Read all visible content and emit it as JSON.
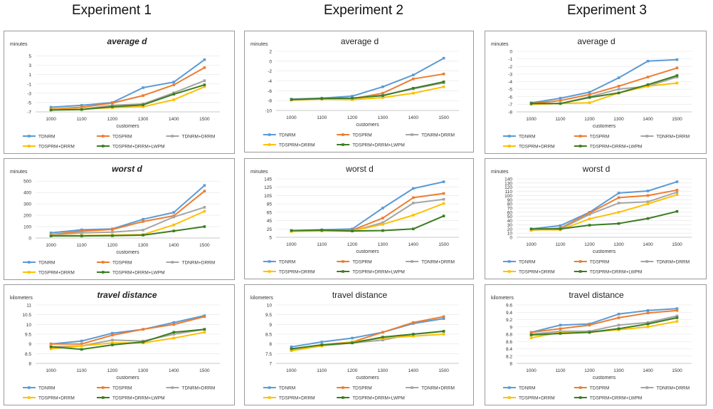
{
  "experiments": [
    "Experiment 1",
    "Experiment 2",
    "Experiment 3"
  ],
  "colors": {
    "TDNRM": "#5b9bd5",
    "TDSPRM": "#ed7d31",
    "TDNRM+DRRM": "#a5a5a5",
    "TDSPRM+DRRM": "#ffc000",
    "TDSPRM+DRRM+LWPM": "#3a7d22"
  },
  "chart_data": [
    {
      "type": "line",
      "title": "average d",
      "ylabel": "minutes",
      "xlabel": "customers",
      "categories": [
        "1000",
        "1100",
        "1200",
        "1300",
        "1400",
        "1500"
      ],
      "yticks": [
        "-7",
        "-5",
        "-3",
        "-1",
        "1",
        "3",
        "5"
      ],
      "ylim": [
        -7,
        6
      ],
      "legend": [
        "TDNRM",
        "TDSPRM",
        "TDNRM+DRRM",
        "TDSPRM+DRRM",
        "TDSPRM+DRRM+LWPM"
      ],
      "series": [
        {
          "name": "TDNRM",
          "values": [
            -6.0,
            -5.6,
            -5.0,
            -1.8,
            -0.6,
            4.2
          ]
        },
        {
          "name": "TDSPRM",
          "values": [
            -6.4,
            -6.0,
            -5.1,
            -3.5,
            -1.2,
            2.5
          ]
        },
        {
          "name": "TDNRM+DRRM",
          "values": [
            -6.5,
            -6.4,
            -5.6,
            -5.3,
            -2.9,
            -0.3
          ]
        },
        {
          "name": "TDSPRM+DRRM",
          "values": [
            -6.5,
            -6.4,
            -6.1,
            -5.9,
            -4.4,
            -1.6
          ]
        },
        {
          "name": "TDSPRM+DRRM+LWPM",
          "values": [
            -6.6,
            -6.5,
            -5.9,
            -5.5,
            -3.2,
            -1.2
          ]
        }
      ]
    },
    {
      "type": "line",
      "title": "average d",
      "ylabel": "minutes",
      "xlabel": "customers",
      "categories": [
        "1000",
        "1100",
        "1200",
        "1300",
        "1400",
        "1500"
      ],
      "yticks": [
        "-10",
        "-8",
        "-6",
        "-4",
        "-2",
        "0",
        "2"
      ],
      "ylim": [
        -10,
        2
      ],
      "legend": [
        "TDNRM",
        "TDSPRM",
        "TDNRM+DRRM",
        "TDSPRM+DRRM",
        "TDSPRM+DRRM+LWPM"
      ],
      "series": [
        {
          "name": "TDNRM",
          "values": [
            -7.7,
            -7.5,
            -7.1,
            -5.2,
            -2.8,
            0.6
          ]
        },
        {
          "name": "TDSPRM",
          "values": [
            -7.8,
            -7.6,
            -7.6,
            -6.5,
            -3.6,
            -2.6
          ]
        },
        {
          "name": "TDNRM+DRRM",
          "values": [
            -7.8,
            -7.6,
            -7.5,
            -6.9,
            -5.6,
            -4.4
          ]
        },
        {
          "name": "TDSPRM+DRRM",
          "values": [
            -7.9,
            -7.7,
            -7.8,
            -7.4,
            -6.5,
            -5.2
          ]
        },
        {
          "name": "TDSPRM+DRRM+LWPM",
          "values": [
            -7.8,
            -7.6,
            -7.5,
            -7.0,
            -5.5,
            -4.2
          ]
        }
      ]
    },
    {
      "type": "line",
      "title": "average d",
      "ylabel": "minutes",
      "xlabel": "customers",
      "categories": [
        "1000",
        "1100",
        "1200",
        "1300",
        "1400",
        "1500"
      ],
      "yticks": [
        "-8",
        "-7",
        "-6",
        "-5",
        "-4",
        "-3",
        "-2",
        "-1",
        "0"
      ],
      "ylim": [
        -8,
        0
      ],
      "legend": [
        "TDNRM",
        "TDSPRM",
        "TDNRM+DRRM",
        "TDSPRM+DRRM",
        "TDSPRM+DRRM+LWPM"
      ],
      "series": [
        {
          "name": "TDNRM",
          "values": [
            -6.8,
            -6.2,
            -5.4,
            -3.5,
            -1.3,
            -1.1
          ]
        },
        {
          "name": "TDSPRM",
          "values": [
            -6.9,
            -6.5,
            -5.7,
            -4.6,
            -3.4,
            -2.2
          ]
        },
        {
          "name": "TDNRM+DRRM",
          "values": [
            -7.0,
            -6.9,
            -6.0,
            -5.0,
            -4.6,
            -3.4
          ]
        },
        {
          "name": "TDSPRM+DRRM",
          "values": [
            -7.0,
            -6.9,
            -6.8,
            -5.5,
            -4.6,
            -4.2
          ]
        },
        {
          "name": "TDSPRM+DRRM+LWPM",
          "values": [
            -6.9,
            -6.9,
            -6.1,
            -5.5,
            -4.4,
            -3.2
          ]
        }
      ]
    },
    {
      "type": "line",
      "title": "worst d",
      "ylabel": "minutes",
      "xlabel": "customers",
      "categories": [
        "1000",
        "1100",
        "1200",
        "1300",
        "1400",
        "1500"
      ],
      "yticks": [
        "0",
        "100",
        "200",
        "300",
        "400",
        "500"
      ],
      "ylim": [
        0,
        520
      ],
      "legend": [
        "TDNRM",
        "TDSPRM",
        "TDNRM+DRRM",
        "TDSPRM+DRRM",
        "TDSPRM+DRRM+LWPM"
      ],
      "series": [
        {
          "name": "TDNRM",
          "values": [
            45,
            72,
            80,
            165,
            225,
            462
          ]
        },
        {
          "name": "TDSPRM",
          "values": [
            30,
            60,
            75,
            145,
            195,
            412
          ]
        },
        {
          "name": "TDNRM+DRRM",
          "values": [
            28,
            45,
            52,
            70,
            185,
            270
          ]
        },
        {
          "name": "TDSPRM+DRRM",
          "values": [
            22,
            22,
            25,
            30,
            115,
            235
          ]
        },
        {
          "name": "TDSPRM+DRRM+LWPM",
          "values": [
            18,
            18,
            20,
            25,
            62,
            100
          ]
        }
      ]
    },
    {
      "type": "line",
      "title": "worst d",
      "ylabel": "minutes",
      "xlabel": "customers",
      "categories": [
        "1000",
        "1100",
        "1200",
        "1300",
        "1400",
        "1500"
      ],
      "yticks": [
        "5",
        "25",
        "45",
        "65",
        "85",
        "105",
        "125",
        "145"
      ],
      "ylim": [
        5,
        145
      ],
      "legend": [
        "TDNRM",
        "TDSPRM",
        "TDNRM+DRRM",
        "TDSPRM+DRRM",
        "TDSPRM+DRRM+LWPM"
      ],
      "series": [
        {
          "name": "TDNRM",
          "values": [
            21,
            23,
            25,
            75,
            122,
            138
          ]
        },
        {
          "name": "TDSPRM",
          "values": [
            20,
            21,
            22,
            51,
            100,
            110
          ]
        },
        {
          "name": "TDNRM+DRRM",
          "values": [
            20,
            21,
            20,
            40,
            87,
            96
          ]
        },
        {
          "name": "TDSPRM+DRRM",
          "values": [
            19,
            20,
            20,
            36,
            58,
            86
          ]
        },
        {
          "name": "TDSPRM+DRRM+LWPM",
          "values": [
            21,
            22,
            20,
            21,
            25,
            56
          ]
        }
      ]
    },
    {
      "type": "line",
      "title": "worst d",
      "ylabel": "minutes",
      "xlabel": "customers",
      "categories": [
        "1000",
        "1100",
        "1200",
        "1300",
        "1400",
        "1500"
      ],
      "yticks": [
        "0",
        "10",
        "20",
        "30",
        "40",
        "50",
        "60",
        "70",
        "80",
        "90",
        "100",
        "110",
        "120",
        "130",
        "140"
      ],
      "ylim": [
        0,
        140
      ],
      "legend": [
        "TDNRM",
        "TDSPRM",
        "TDNRM+DRRM",
        "TDSPRM+DRRM",
        "TDSPRM+DRRM+LWPM"
      ],
      "series": [
        {
          "name": "TDNRM",
          "values": [
            20,
            28,
            60,
            106,
            111,
            133
          ]
        },
        {
          "name": "TDSPRM",
          "values": [
            18,
            22,
            58,
            95,
            100,
            113
          ]
        },
        {
          "name": "TDNRM+DRRM",
          "values": [
            17,
            20,
            55,
            82,
            85,
            108
          ]
        },
        {
          "name": "TDSPRM+DRRM",
          "values": [
            18,
            18,
            44,
            60,
            80,
            102
          ]
        },
        {
          "name": "TDSPRM+DRRM+LWPM",
          "values": [
            20,
            20,
            29,
            33,
            45,
            62
          ]
        }
      ]
    },
    {
      "type": "line",
      "title": "travel distance",
      "ylabel": "kilometers",
      "xlabel": "customers",
      "categories": [
        "1000",
        "1100",
        "1200",
        "1300",
        "1400",
        "1500"
      ],
      "yticks": [
        "8",
        "8.5",
        "9",
        "9.5",
        "10",
        "10.5",
        "11"
      ],
      "ylim": [
        8,
        11
      ],
      "legend": [
        "TDNRM",
        "TDSPRM",
        "TDNRM+DRRM",
        "TDSPRM+DRRM",
        "TDSPRM+DRRM+LWPM"
      ],
      "series": [
        {
          "name": "TDNRM",
          "values": [
            9.0,
            9.15,
            9.55,
            9.75,
            10.1,
            10.45
          ]
        },
        {
          "name": "TDSPRM",
          "values": [
            9.0,
            9.0,
            9.45,
            9.75,
            10.0,
            10.4
          ]
        },
        {
          "name": "TDNRM+DRRM",
          "values": [
            8.85,
            8.9,
            9.2,
            9.15,
            9.5,
            9.75
          ]
        },
        {
          "name": "TDSPRM+DRRM",
          "values": [
            8.75,
            8.9,
            9.05,
            9.05,
            9.3,
            9.6
          ]
        },
        {
          "name": "TDSPRM+DRRM+LWPM",
          "values": [
            8.85,
            8.72,
            8.95,
            9.1,
            9.6,
            9.75
          ]
        }
      ]
    },
    {
      "type": "line",
      "title": "travel distance",
      "ylabel": "kilometers",
      "xlabel": "customers",
      "categories": [
        "1000",
        "1100",
        "1200",
        "1300",
        "1400",
        "1500"
      ],
      "yticks": [
        "7",
        "7.5",
        "8",
        "8.5",
        "9",
        "9.5",
        "10"
      ],
      "ylim": [
        7,
        10
      ],
      "legend": [
        "TDNRM",
        "TDSPRM",
        "TDNRM+DRRM",
        "TDSPRM+DRRM",
        "TDSPRM+DRRM+LWPM"
      ],
      "series": [
        {
          "name": "TDNRM",
          "values": [
            7.85,
            8.1,
            8.3,
            8.6,
            9.05,
            9.3
          ]
        },
        {
          "name": "TDSPRM",
          "values": [
            7.7,
            7.95,
            8.1,
            8.6,
            9.1,
            9.4
          ]
        },
        {
          "name": "TDNRM+DRRM",
          "values": [
            7.7,
            7.9,
            8.05,
            8.2,
            8.5,
            8.65
          ]
        },
        {
          "name": "TDSPRM+DRRM",
          "values": [
            7.65,
            7.9,
            8.1,
            8.3,
            8.4,
            8.5
          ]
        },
        {
          "name": "TDSPRM+DRRM+LWPM",
          "values": [
            7.75,
            7.95,
            8.05,
            8.35,
            8.5,
            8.65
          ]
        }
      ]
    },
    {
      "type": "line",
      "title": "travel distance",
      "ylabel": "kilometers",
      "xlabel": "customers",
      "categories": [
        "1000",
        "1100",
        "1200",
        "1300",
        "1400",
        "1500"
      ],
      "yticks": [
        "8",
        "8.2",
        "8.4",
        "8.6",
        "8.8",
        "9",
        "9.2",
        "9.4",
        "9.6"
      ],
      "ylim": [
        8,
        9.6
      ],
      "legend": [
        "TDNRM",
        "TDSPRM",
        "TDNRM+DRRM",
        "TDSPRM+DRRM",
        "TDSPRM+DRRM+LWPM"
      ],
      "series": [
        {
          "name": "TDNRM",
          "values": [
            8.85,
            9.05,
            9.08,
            9.35,
            9.45,
            9.5
          ]
        },
        {
          "name": "TDSPRM",
          "values": [
            8.85,
            8.95,
            9.05,
            9.25,
            9.38,
            9.45
          ]
        },
        {
          "name": "TDNRM+DRRM",
          "values": [
            8.8,
            8.88,
            8.88,
            9.05,
            9.12,
            9.3
          ]
        },
        {
          "name": "TDSPRM+DRRM",
          "values": [
            8.7,
            8.85,
            8.85,
            8.92,
            9.0,
            9.15
          ]
        },
        {
          "name": "TDSPRM+DRRM+LWPM",
          "values": [
            8.78,
            8.82,
            8.85,
            8.95,
            9.08,
            9.25
          ]
        }
      ]
    }
  ]
}
